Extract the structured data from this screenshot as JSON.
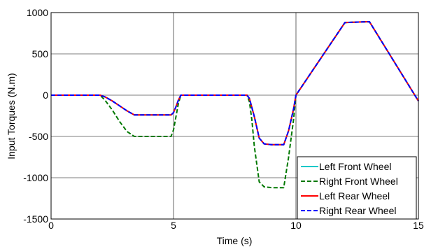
{
  "chart_data": {
    "type": "line",
    "xlabel": "Time (s)",
    "ylabel": "Input Torques (N.m)",
    "xlim": [
      0,
      15
    ],
    "ylim": [
      -1500,
      1000
    ],
    "xticks": [
      "0",
      "5",
      "10",
      "15"
    ],
    "yticks": [
      "-1500",
      "-1000",
      "-500",
      "0",
      "500",
      "1000"
    ],
    "xtick_values": [
      0,
      5,
      10,
      15
    ],
    "ytick_values": [
      -1500,
      -1000,
      -500,
      0,
      500,
      1000
    ],
    "grid": true,
    "legend_position": "bottom-right",
    "series": [
      {
        "name": "Left Front Wheel",
        "color": "#00c8c8",
        "style": "solid",
        "x": [
          0,
          2,
          2.2,
          2.5,
          2.8,
          3.1,
          3.4,
          4.9,
          5.0,
          5.1,
          5.2,
          5.3,
          8.0,
          8.1,
          8.3,
          8.5,
          8.7,
          9.0,
          9.5,
          9.7,
          9.9,
          10.0,
          12.0,
          13.0,
          15.0
        ],
        "y": [
          0,
          0,
          -20,
          -70,
          -130,
          -190,
          -240,
          -240,
          -210,
          -140,
          -60,
          0,
          0,
          -40,
          -260,
          -520,
          -590,
          -600,
          -600,
          -430,
          -170,
          0,
          880,
          890,
          -70
        ]
      },
      {
        "name": "Right Front Wheel",
        "color": "#007800",
        "style": "dashed",
        "x": [
          0,
          2,
          2.2,
          2.5,
          2.8,
          3.1,
          3.4,
          4.9,
          5.0,
          5.1,
          5.2,
          5.3,
          8.0,
          8.1,
          8.2,
          8.3,
          8.5,
          8.7,
          9.0,
          9.5,
          9.7,
          9.9,
          10.0,
          12.0,
          13.0,
          15.0
        ],
        "y": [
          0,
          0,
          -60,
          -180,
          -320,
          -440,
          -500,
          -500,
          -420,
          -260,
          -100,
          0,
          0,
          -80,
          -300,
          -620,
          -1050,
          -1110,
          -1120,
          -1120,
          -750,
          -300,
          0,
          880,
          890,
          -70
        ]
      },
      {
        "name": "Left Rear Wheel",
        "color": "#ff0000",
        "style": "solid",
        "x": [
          0,
          2,
          2.2,
          2.5,
          2.8,
          3.1,
          3.4,
          4.9,
          5.0,
          5.1,
          5.2,
          5.3,
          8.0,
          8.1,
          8.3,
          8.5,
          8.7,
          9.0,
          9.5,
          9.7,
          9.9,
          10.0,
          12.0,
          13.0,
          15.0
        ],
        "y": [
          0,
          0,
          -20,
          -70,
          -130,
          -190,
          -240,
          -240,
          -210,
          -140,
          -60,
          0,
          0,
          -40,
          -260,
          -520,
          -590,
          -600,
          -600,
          -430,
          -170,
          0,
          880,
          890,
          -70
        ]
      },
      {
        "name": "Right Rear Wheel",
        "color": "#0000ff",
        "style": "dashed",
        "x": [
          0,
          2,
          2.2,
          2.5,
          2.8,
          3.1,
          3.4,
          4.9,
          5.0,
          5.1,
          5.2,
          5.3,
          8.0,
          8.1,
          8.3,
          8.5,
          8.7,
          9.0,
          9.5,
          9.7,
          9.9,
          10.0,
          12.0,
          13.0,
          15.0
        ],
        "y": [
          0,
          0,
          -20,
          -70,
          -130,
          -190,
          -240,
          -240,
          -210,
          -140,
          -60,
          0,
          0,
          -40,
          -260,
          -520,
          -590,
          -600,
          -600,
          -430,
          -170,
          0,
          880,
          890,
          -70
        ]
      }
    ]
  }
}
